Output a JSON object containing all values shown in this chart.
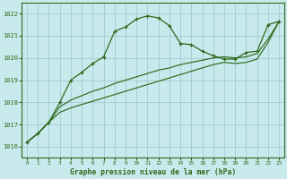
{
  "x": [
    0,
    1,
    2,
    3,
    4,
    5,
    6,
    7,
    8,
    9,
    10,
    11,
    12,
    13,
    14,
    15,
    16,
    17,
    18,
    19,
    20,
    21,
    22,
    23
  ],
  "line_main": [
    1016.2,
    1016.6,
    1017.1,
    1018.0,
    1019.0,
    1019.35,
    1019.75,
    1020.05,
    1021.2,
    1021.4,
    1021.75,
    1021.9,
    1021.8,
    1021.45,
    1020.65,
    1020.6,
    1020.3,
    1020.1,
    1019.95,
    1019.95,
    1020.25,
    1020.3,
    1021.5,
    1021.65
  ],
  "line_flat_upper": [
    1016.2,
    1016.6,
    1017.1,
    1017.8,
    1018.1,
    1018.3,
    1018.5,
    1018.65,
    1018.85,
    1019.0,
    1019.15,
    1019.3,
    1019.45,
    1019.55,
    1019.7,
    1019.8,
    1019.9,
    1020.0,
    1020.05,
    1020.0,
    1020.05,
    1020.2,
    1020.85,
    1021.65
  ],
  "line_flat_lower": [
    1016.2,
    1016.6,
    1017.1,
    1017.55,
    1017.75,
    1017.9,
    1018.05,
    1018.2,
    1018.35,
    1018.5,
    1018.65,
    1018.8,
    1018.95,
    1019.1,
    1019.25,
    1019.4,
    1019.55,
    1019.7,
    1019.8,
    1019.75,
    1019.8,
    1019.95,
    1020.7,
    1021.65
  ],
  "bg_color": "#c8eaec",
  "grid_color": "#9ecdd2",
  "line_color": "#2d6a1a",
  "title": "Graphe pression niveau de la mer (hPa)",
  "ylim": [
    1015.5,
    1022.5
  ],
  "yticks": [
    1016,
    1017,
    1018,
    1019,
    1020,
    1021,
    1022
  ],
  "xlim": [
    -0.5,
    23.5
  ],
  "xticks": [
    0,
    1,
    2,
    3,
    4,
    5,
    6,
    7,
    8,
    9,
    10,
    11,
    12,
    13,
    14,
    15,
    16,
    17,
    18,
    19,
    20,
    21,
    22,
    23
  ]
}
